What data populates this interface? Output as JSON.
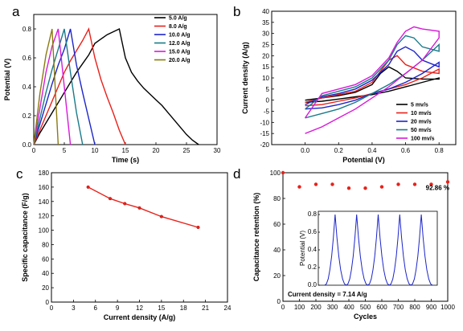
{
  "chart_data": [
    {
      "id": "a",
      "panel_label": "a",
      "type": "line",
      "xlabel": "Time (s)",
      "ylabel": "Potential (V)",
      "xlim": [
        0,
        30
      ],
      "ylim": [
        0,
        0.9
      ],
      "xticks": [
        "0",
        "5",
        "10",
        "15",
        "20",
        "25",
        "30"
      ],
      "yticks": [
        "0.0",
        "0.2",
        "0.4",
        "0.6",
        "0.8"
      ],
      "legend_position": "top-right",
      "series": [
        {
          "name": "5.0 A/g",
          "color": "#000000",
          "x": [
            0,
            1,
            2,
            3,
            4,
            5,
            6,
            7,
            8,
            9,
            10,
            11,
            12,
            13,
            14,
            15,
            16,
            17,
            18,
            19,
            20,
            21,
            22,
            23,
            24,
            25,
            26,
            27
          ],
          "y": [
            0,
            0.08,
            0.15,
            0.22,
            0.29,
            0.36,
            0.43,
            0.5,
            0.56,
            0.62,
            0.7,
            0.73,
            0.76,
            0.78,
            0.8,
            0.6,
            0.5,
            0.44,
            0.39,
            0.35,
            0.31,
            0.27,
            0.22,
            0.17,
            0.12,
            0.07,
            0.03,
            0
          ]
        },
        {
          "name": "8.0 A/g",
          "color": "#e8211a",
          "x": [
            0,
            1,
            2,
            3,
            4,
            5,
            6,
            7,
            8,
            9,
            10,
            11,
            12,
            13,
            14,
            15
          ],
          "y": [
            0,
            0.1,
            0.2,
            0.3,
            0.4,
            0.5,
            0.58,
            0.65,
            0.72,
            0.8,
            0.6,
            0.45,
            0.33,
            0.22,
            0.1,
            0
          ]
        },
        {
          "name": "10.0 A/g",
          "color": "#1c25c9",
          "x": [
            0,
            1,
            2,
            3,
            4,
            5,
            6,
            7,
            8,
            9,
            10
          ],
          "y": [
            0,
            0.14,
            0.28,
            0.42,
            0.55,
            0.66,
            0.8,
            0.55,
            0.36,
            0.18,
            0
          ]
        },
        {
          "name": "12.0 A/g",
          "color": "#1a7a8a",
          "x": [
            0,
            1,
            2,
            3,
            4,
            5,
            6,
            7,
            8
          ],
          "y": [
            0,
            0.18,
            0.36,
            0.52,
            0.66,
            0.8,
            0.5,
            0.22,
            0
          ]
        },
        {
          "name": "15.0 A/g",
          "color": "#d81ad8",
          "x": [
            0,
            1,
            2,
            3,
            4,
            5,
            6
          ],
          "y": [
            0,
            0.25,
            0.5,
            0.68,
            0.8,
            0.4,
            0
          ]
        },
        {
          "name": "20.0 A/g",
          "color": "#8a7a10",
          "x": [
            0,
            1,
            2,
            3,
            4
          ],
          "y": [
            0,
            0.35,
            0.62,
            0.8,
            0
          ]
        }
      ]
    },
    {
      "id": "b",
      "panel_label": "b",
      "type": "line",
      "xlabel": "Potential (V)",
      "ylabel": "Current density (A/g)",
      "xlim": [
        -0.2,
        0.9
      ],
      "ylim": [
        -20,
        40
      ],
      "xticks": [
        "0.0",
        "0.2",
        "0.4",
        "0.6",
        "0.8"
      ],
      "yticks": [
        "-20",
        "-15",
        "-10",
        "-5",
        "0",
        "5",
        "10",
        "15",
        "20",
        "25",
        "30",
        "35",
        "40"
      ],
      "legend_position": "bottom-right",
      "series": [
        {
          "name": "5 mv/s",
          "color": "#000000",
          "x": [
            0,
            0.1,
            0.2,
            0.3,
            0.4,
            0.45,
            0.5,
            0.55,
            0.6,
            0.7,
            0.8,
            0.8,
            0.7,
            0.6,
            0.5,
            0.4,
            0.3,
            0.2,
            0.1,
            0
          ],
          "y": [
            0,
            1,
            2,
            3.5,
            7,
            12,
            15,
            13,
            10,
            9.5,
            9.5,
            10,
            8,
            6,
            4,
            2.5,
            1.5,
            0.5,
            -0.5,
            -1
          ]
        },
        {
          "name": "10 mv/s",
          "color": "#e8211a",
          "x": [
            0,
            0.1,
            0.2,
            0.3,
            0.4,
            0.45,
            0.5,
            0.55,
            0.6,
            0.7,
            0.8,
            0.8,
            0.7,
            0.6,
            0.5,
            0.4,
            0.3,
            0.2,
            0.1,
            0
          ],
          "y": [
            -1,
            1,
            2.5,
            4,
            8,
            13,
            18,
            20,
            16,
            13,
            12,
            14,
            10,
            7,
            5,
            3,
            1,
            -0.5,
            -2,
            -2.5
          ]
        },
        {
          "name": "20 mv/s",
          "color": "#1c25c9",
          "x": [
            0,
            0.1,
            0.2,
            0.3,
            0.4,
            0.5,
            0.55,
            0.6,
            0.65,
            0.7,
            0.8,
            0.8,
            0.7,
            0.6,
            0.5,
            0.4,
            0.3,
            0.2,
            0.1,
            0
          ],
          "y": [
            -2,
            1.5,
            3,
            5,
            9,
            16,
            22,
            24,
            22,
            18,
            15,
            17,
            12,
            8,
            5,
            3,
            0,
            -2,
            -3.5,
            -4
          ]
        },
        {
          "name": "50 mv/s",
          "color": "#1a7a8a",
          "x": [
            0,
            0.1,
            0.2,
            0.3,
            0.4,
            0.5,
            0.55,
            0.6,
            0.65,
            0.7,
            0.8,
            0.8,
            0.7,
            0.6,
            0.5,
            0.4,
            0.3,
            0.2,
            0.1,
            0
          ],
          "y": [
            -4,
            2,
            4,
            6,
            10,
            18,
            25,
            29,
            28,
            24,
            22,
            25,
            18,
            12,
            7,
            3,
            -1,
            -4,
            -6,
            -8
          ]
        },
        {
          "name": "100 mv/s",
          "color": "#d81ad8",
          "x": [
            0,
            0.1,
            0.2,
            0.3,
            0.4,
            0.5,
            0.55,
            0.6,
            0.65,
            0.7,
            0.8,
            0.8,
            0.7,
            0.6,
            0.5,
            0.4,
            0.3,
            0.2,
            0.1,
            0
          ],
          "y": [
            -8,
            3,
            5,
            7,
            11,
            19,
            26,
            31,
            33,
            32,
            31,
            28,
            18,
            12,
            6,
            1,
            -4,
            -8,
            -12,
            -15
          ]
        }
      ]
    },
    {
      "id": "c",
      "panel_label": "c",
      "type": "line",
      "xlabel": "Current density (A/g)",
      "ylabel": "Specific capacitance (F/g)",
      "xlim": [
        0,
        24
      ],
      "ylim": [
        0,
        180
      ],
      "xticks": [
        "0",
        "3",
        "6",
        "9",
        "12",
        "15",
        "18",
        "21",
        "24"
      ],
      "yticks": [
        "0",
        "20",
        "40",
        "60",
        "80",
        "100",
        "120",
        "140",
        "160",
        "180"
      ],
      "series": [
        {
          "name": "",
          "color": "#e8211a",
          "x": [
            5,
            8,
            10,
            12,
            15,
            20
          ],
          "y": [
            160,
            144,
            137,
            131,
            119,
            104
          ]
        }
      ]
    },
    {
      "id": "d",
      "panel_label": "d",
      "type": "scatter",
      "xlabel": "Cycles",
      "ylabel": "Capacitance retention (%)",
      "xlim": [
        0,
        1000
      ],
      "ylim": [
        0,
        100
      ],
      "xticks": [
        "0",
        "100",
        "200",
        "300",
        "400",
        "500",
        "600",
        "700",
        "800",
        "900",
        "1000"
      ],
      "yticks": [
        "0",
        "20",
        "40",
        "60",
        "80",
        "100"
      ],
      "annotation": "92.86 %",
      "note": "Current density = 7.14 A/g",
      "series": [
        {
          "name": "",
          "color": "#e8211a",
          "x": [
            0,
            100,
            200,
            300,
            400,
            500,
            600,
            700,
            800,
            900,
            1000
          ],
          "y": [
            100,
            89,
            91,
            91,
            88,
            88,
            89,
            91,
            91,
            91,
            92.86
          ]
        }
      ],
      "inset": {
        "ylabel": "Potential (V)",
        "ylim": [
          0,
          0.8
        ],
        "yticks": [
          "0.0",
          "0.2",
          "0.4",
          "0.6",
          "0.8"
        ],
        "color": "#1c25c9",
        "peaks": 5
      }
    }
  ]
}
